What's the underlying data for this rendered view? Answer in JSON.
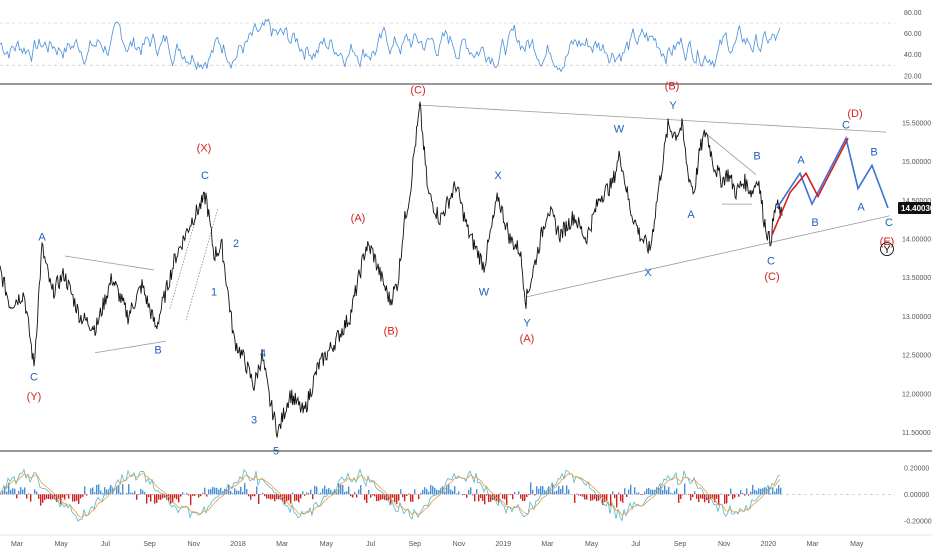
{
  "chart_data": [
    {
      "type": "line",
      "panel": "oscillator-top",
      "y_ticks": [
        "80.00",
        "60.00",
        "40.00",
        "20.00"
      ],
      "y_tick_values": [
        80,
        60,
        40,
        20
      ],
      "ylim": [
        16,
        88
      ],
      "ref_lines": [
        70,
        30
      ],
      "color": "#4a90d9"
    },
    {
      "type": "line",
      "panel": "price",
      "y_ticks": [
        "15.50000",
        "15.00000",
        "14.50000",
        "14.00000",
        "13.50000",
        "13.00000",
        "12.50000",
        "12.00000",
        "11.50000"
      ],
      "y_tick_values": [
        15.5,
        15.0,
        14.5,
        14.0,
        13.5,
        13.0,
        12.5,
        12.0,
        11.5
      ],
      "ylim": [
        11.3,
        15.95
      ],
      "last_price": "14.40030",
      "x_labels": [
        "Mar",
        "May",
        "Jul",
        "Sep",
        "Nov",
        "2018",
        "Mar",
        "May",
        "Jul",
        "Sep",
        "Nov",
        "2019",
        "Mar",
        "May",
        "Jul",
        "Sep",
        "Nov",
        "2020",
        "Mar",
        "May"
      ],
      "price_path_anchors": [
        [
          0,
          13.6
        ],
        [
          10,
          13.15
        ],
        [
          24,
          13.3
        ],
        [
          34,
          12.35
        ],
        [
          42,
          13.9
        ],
        [
          52,
          13.3
        ],
        [
          64,
          13.55
        ],
        [
          80,
          13.0
        ],
        [
          96,
          12.85
        ],
        [
          112,
          13.5
        ],
        [
          128,
          13.0
        ],
        [
          142,
          13.4
        ],
        [
          156,
          12.85
        ],
        [
          175,
          13.75
        ],
        [
          192,
          14.25
        ],
        [
          206,
          14.55
        ],
        [
          214,
          13.8
        ],
        [
          222,
          13.9
        ],
        [
          228,
          13.3
        ],
        [
          234,
          12.7
        ],
        [
          244,
          12.45
        ],
        [
          254,
          12.1
        ],
        [
          262,
          12.5
        ],
        [
          270,
          11.9
        ],
        [
          278,
          11.5
        ],
        [
          290,
          12.0
        ],
        [
          304,
          11.75
        ],
        [
          318,
          12.35
        ],
        [
          334,
          12.65
        ],
        [
          350,
          13.0
        ],
        [
          366,
          13.9
        ],
        [
          372,
          13.85
        ],
        [
          380,
          13.55
        ],
        [
          390,
          13.2
        ],
        [
          398,
          13.45
        ],
        [
          404,
          14.2
        ],
        [
          410,
          14.6
        ],
        [
          414,
          15.1
        ],
        [
          420,
          15.7
        ],
        [
          428,
          14.6
        ],
        [
          440,
          14.25
        ],
        [
          456,
          14.7
        ],
        [
          468,
          14.1
        ],
        [
          484,
          13.65
        ],
        [
          498,
          14.55
        ],
        [
          510,
          14.0
        ],
        [
          520,
          13.85
        ],
        [
          526,
          13.2
        ],
        [
          536,
          13.75
        ],
        [
          548,
          14.4
        ],
        [
          560,
          14.05
        ],
        [
          574,
          14.3
        ],
        [
          586,
          14.0
        ],
        [
          600,
          14.55
        ],
        [
          612,
          14.7
        ],
        [
          620,
          15.1
        ],
        [
          630,
          14.4
        ],
        [
          640,
          14.05
        ],
        [
          650,
          13.85
        ],
        [
          658,
          14.6
        ],
        [
          668,
          15.45
        ],
        [
          676,
          15.35
        ],
        [
          682,
          15.45
        ],
        [
          688,
          14.85
        ],
        [
          694,
          14.6
        ],
        [
          700,
          15.15
        ],
        [
          706,
          15.4
        ],
        [
          714,
          14.95
        ],
        [
          722,
          14.75
        ],
        [
          728,
          14.85
        ],
        [
          736,
          14.6
        ],
        [
          744,
          14.75
        ],
        [
          752,
          14.6
        ],
        [
          758,
          14.8
        ],
        [
          764,
          14.25
        ],
        [
          770,
          13.95
        ],
        [
          776,
          14.45
        ],
        [
          782,
          14.3
        ]
      ],
      "projections": [
        {
          "name": "blue",
          "color": "#3a6fd6",
          "points": [
            [
              777,
              14.4
            ],
            [
              800,
              14.85
            ],
            [
              812,
              14.45
            ],
            [
              846,
              15.3
            ],
            [
              858,
              14.65
            ],
            [
              872,
              14.95
            ],
            [
              888,
              14.4
            ]
          ]
        },
        {
          "name": "red",
          "color": "#d22020",
          "points": [
            [
              772,
              14.05
            ],
            [
              790,
              14.6
            ],
            [
              806,
              14.85
            ],
            [
              818,
              14.55
            ],
            [
              848,
              15.3
            ]
          ]
        }
      ],
      "trendlines": [
        [
          [
            418,
            15.73
          ],
          [
            886,
            15.38
          ]
        ],
        [
          [
            526,
            13.25
          ],
          [
            890,
            14.3
          ]
        ],
        [
          [
            65,
            13.78
          ],
          [
            154,
            13.6
          ]
        ],
        [
          [
            95,
            12.53
          ],
          [
            166,
            12.68
          ]
        ],
        [
          [
            706,
            15.36
          ],
          [
            756,
            14.83
          ]
        ],
        [
          [
            722,
            14.45
          ],
          [
            752,
            14.45
          ]
        ],
        [
          [
            170,
            13.1
          ],
          [
            203,
            14.59
          ]
        ],
        [
          [
            186,
            12.95
          ],
          [
            218,
            14.4
          ]
        ]
      ],
      "wave_labels": [
        {
          "text": "A",
          "x": 42,
          "y": 13.9,
          "color": "#1f5fbf",
          "pos": "above"
        },
        {
          "text": "C",
          "x": 34,
          "y": 12.35,
          "color": "#1f5fbf",
          "pos": "below"
        },
        {
          "text": "(Y)",
          "x": 34,
          "y": 12.1,
          "color": "#d22020",
          "pos": "below"
        },
        {
          "text": "B",
          "x": 158,
          "y": 12.7,
          "color": "#1f5fbf",
          "pos": "below"
        },
        {
          "text": "(X)",
          "x": 204,
          "y": 15.05,
          "color": "#d22020",
          "pos": "above"
        },
        {
          "text": "C",
          "x": 205,
          "y": 14.7,
          "color": "#1f5fbf",
          "pos": "above"
        },
        {
          "text": "2",
          "x": 227,
          "y": 13.95,
          "color": "#1f5fbf",
          "pos": "right"
        },
        {
          "text": "1",
          "x": 214,
          "y": 13.45,
          "color": "#1f5fbf",
          "pos": "below"
        },
        {
          "text": "4",
          "x": 263,
          "y": 12.4,
          "color": "#1f5fbf",
          "pos": "above"
        },
        {
          "text": "3",
          "x": 254,
          "y": 11.8,
          "color": "#1f5fbf",
          "pos": "below"
        },
        {
          "text": "5",
          "x": 276,
          "y": 11.4,
          "color": "#1f5fbf",
          "pos": "below"
        },
        {
          "text": "(A)",
          "x": 358,
          "y": 14.15,
          "color": "#d22020",
          "pos": "above"
        },
        {
          "text": "(B)",
          "x": 391,
          "y": 12.95,
          "color": "#d22020",
          "pos": "below"
        },
        {
          "text": "(C)",
          "x": 418,
          "y": 15.8,
          "color": "#d22020",
          "pos": "above"
        },
        {
          "text": "X",
          "x": 498,
          "y": 14.7,
          "color": "#1f5fbf",
          "pos": "above"
        },
        {
          "text": "W",
          "x": 484,
          "y": 13.45,
          "color": "#1f5fbf",
          "pos": "below"
        },
        {
          "text": "Y",
          "x": 527,
          "y": 13.05,
          "color": "#1f5fbf",
          "pos": "below"
        },
        {
          "text": "(A)",
          "x": 527,
          "y": 12.85,
          "color": "#d22020",
          "pos": "below"
        },
        {
          "text": "W",
          "x": 619,
          "y": 15.3,
          "color": "#1f5fbf",
          "pos": "above"
        },
        {
          "text": "X",
          "x": 648,
          "y": 13.7,
          "color": "#1f5fbf",
          "pos": "below"
        },
        {
          "text": "(B)",
          "x": 672,
          "y": 15.85,
          "color": "#d22020",
          "pos": "above"
        },
        {
          "text": "Y",
          "x": 673,
          "y": 15.6,
          "color": "#1f5fbf",
          "pos": "above"
        },
        {
          "text": "A",
          "x": 691,
          "y": 14.45,
          "color": "#1f5fbf",
          "pos": "below"
        },
        {
          "text": "B",
          "x": 757,
          "y": 14.95,
          "color": "#1f5fbf",
          "pos": "above"
        },
        {
          "text": "C",
          "x": 771,
          "y": 13.85,
          "color": "#1f5fbf",
          "pos": "below"
        },
        {
          "text": "(C)",
          "x": 772,
          "y": 13.65,
          "color": "#d22020",
          "pos": "below"
        },
        {
          "text": "A",
          "x": 801,
          "y": 14.9,
          "color": "#1f5fbf",
          "pos": "above"
        },
        {
          "text": "B",
          "x": 815,
          "y": 14.35,
          "color": "#1f5fbf",
          "pos": "below"
        },
        {
          "text": "(D)",
          "x": 855,
          "y": 15.5,
          "color": "#d22020",
          "pos": "above"
        },
        {
          "text": "C",
          "x": 846,
          "y": 15.35,
          "color": "#1f5fbf",
          "pos": "above"
        },
        {
          "text": "B",
          "x": 874,
          "y": 15.0,
          "color": "#1f5fbf",
          "pos": "above"
        },
        {
          "text": "A",
          "x": 861,
          "y": 14.55,
          "color": "#1f5fbf",
          "pos": "below"
        },
        {
          "text": "C",
          "x": 889,
          "y": 14.35,
          "color": "#1f5fbf",
          "pos": "below"
        },
        {
          "text": "(E)",
          "x": 887,
          "y": 14.1,
          "color": "#d22020",
          "pos": "below"
        }
      ],
      "circled_label": {
        "text": "Y",
        "x": 887,
        "y": 13.87
      }
    },
    {
      "type": "bar",
      "panel": "macd",
      "y_ticks": [
        "0.20000",
        "0.00000",
        "-0.20000"
      ],
      "y_tick_values": [
        0.2,
        0.0,
        -0.2
      ],
      "ylim": [
        -0.27,
        0.29
      ],
      "colors": {
        "positive": "#4a90d9",
        "negative": "#d22020",
        "signal": "#e8a040",
        "line": "#5bb5c8"
      }
    }
  ]
}
